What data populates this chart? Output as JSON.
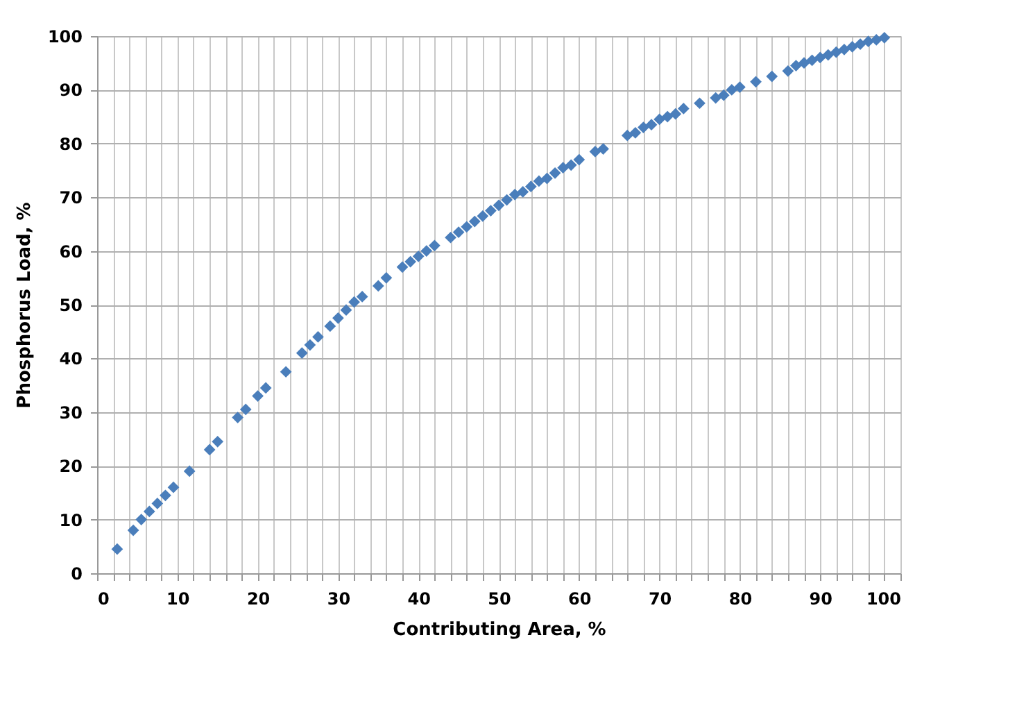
{
  "chart_data": {
    "type": "scatter",
    "xlabel": "Contributing Area, %",
    "ylabel": "Phosphorus Load, %",
    "x": [
      2.5,
      4.5,
      5.5,
      6.5,
      7.5,
      8.5,
      9.5,
      11.5,
      14,
      15,
      17.5,
      18.5,
      20,
      21,
      23.5,
      25.5,
      26.5,
      27.5,
      29,
      30,
      31,
      32,
      33,
      35,
      36,
      38,
      39,
      40,
      41,
      42,
      44,
      45,
      46,
      47,
      48,
      49,
      50,
      51,
      52,
      53,
      54,
      55,
      56,
      57,
      58,
      59,
      60,
      62,
      63,
      66,
      67,
      68,
      69,
      70,
      71,
      72,
      73,
      75,
      77,
      78,
      79,
      80,
      82,
      84,
      86,
      87,
      88,
      89,
      90,
      91,
      92,
      93,
      94,
      95,
      96,
      97,
      98
    ],
    "series": [
      {
        "color": "#4a7ebb",
        "values": [
          4.5,
          8,
          10,
          11.5,
          13,
          14.5,
          16,
          19,
          23,
          24.5,
          29,
          30.5,
          33,
          34.5,
          37.5,
          41,
          42.5,
          44,
          46,
          47.5,
          49,
          50.5,
          51.5,
          53.5,
          55,
          57,
          58,
          59,
          60,
          61,
          62.5,
          63.5,
          64.5,
          65.5,
          66.5,
          67.5,
          68.5,
          69.5,
          70.5,
          71,
          72,
          73,
          73.5,
          74.5,
          75.5,
          76,
          77,
          78.5,
          79,
          81.5,
          82,
          83,
          83.5,
          84.5,
          85,
          85.5,
          86.5,
          87.5,
          88.5,
          89,
          90,
          90.5,
          91.5,
          92.5,
          93.5,
          94.5,
          95,
          95.5,
          96,
          96.5,
          97,
          97.5,
          98,
          98.5,
          99,
          99.3,
          99.7
        ]
      }
    ],
    "xlim": [
      0,
      100
    ],
    "ylim": [
      0,
      100
    ],
    "xticks": [
      0,
      {
        "value": 2,
        "label": null
      },
      {
        "value": 4,
        "label": null
      },
      {
        "value": 6,
        "label": null
      },
      {
        "value": 8,
        "label": null
      },
      10,
      {
        "value": 12,
        "label": null
      },
      {
        "value": 14,
        "label": null
      },
      {
        "value": 16,
        "label": null
      },
      {
        "value": 18,
        "label": null
      },
      20,
      {
        "value": 22,
        "label": null
      },
      {
        "value": 24,
        "label": null
      },
      {
        "value": 26,
        "label": null
      },
      {
        "value": 28,
        "label": null
      },
      30,
      {
        "value": 32,
        "label": null
      },
      {
        "value": 34,
        "label": null
      },
      {
        "value": 36,
        "label": null
      },
      {
        "value": 38,
        "label": null
      },
      40,
      {
        "value": 42,
        "label": null
      },
      {
        "value": 44,
        "label": null
      },
      {
        "value": 46,
        "label": null
      },
      {
        "value": 48,
        "label": null
      },
      50,
      {
        "value": 52,
        "label": null
      },
      {
        "value": 54,
        "label": null
      },
      {
        "value": 56,
        "label": null
      },
      {
        "value": 58,
        "label": null
      },
      60,
      {
        "value": 62,
        "label": null
      },
      {
        "value": 64,
        "label": null
      },
      {
        "value": 66,
        "label": null
      },
      {
        "value": 68,
        "label": null
      },
      70,
      {
        "value": 72,
        "label": null
      },
      {
        "value": 74,
        "label": null
      },
      {
        "value": 76,
        "label": null
      },
      {
        "value": 78,
        "label": null
      },
      80,
      {
        "value": 82,
        "label": null
      },
      {
        "value": 84,
        "label": null
      },
      {
        "value": 86,
        "label": null
      },
      {
        "value": 88,
        "label": null
      },
      90,
      {
        "value": 92,
        "label": null
      },
      {
        "value": 94,
        "label": null
      },
      {
        "value": 96,
        "label": null
      },
      {
        "value": 98,
        "label": null
      },
      100
    ],
    "yticks": [
      0,
      10,
      20,
      30,
      40,
      50,
      60,
      70,
      80,
      90,
      100
    ],
    "grid": true,
    "marker": "diamond",
    "legend": false
  }
}
